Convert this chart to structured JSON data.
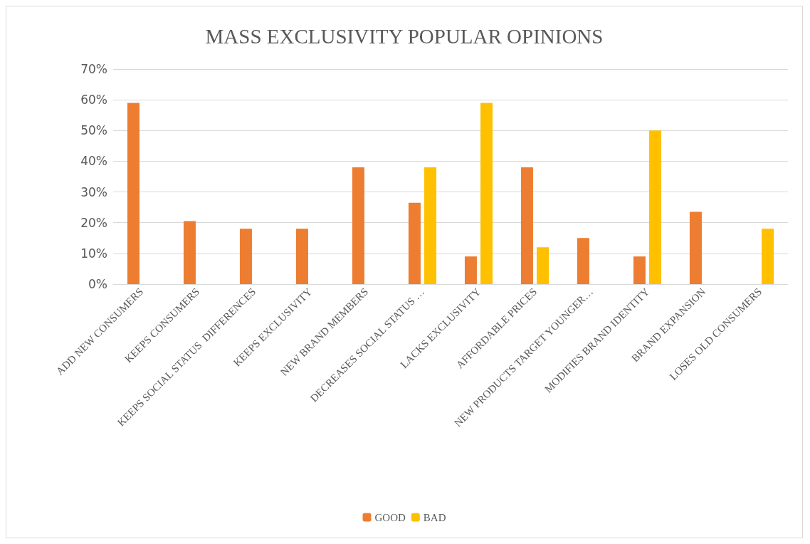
{
  "chart_data": {
    "type": "bar",
    "title": "MASS EXCLUSIVITY POPULAR OPINIONS",
    "categories": [
      "ADD NEW CONSUMERS",
      "KEEPS CONSUMERS",
      "KEEPS SOCIAL STATUS  DIFFERENCES",
      "KEEPS EXCLUSIVITY",
      "NEW BRAND MEMBERS",
      "DECREASES SOCIAL STATUS …",
      "LACKS EXCLUSIVITY",
      "AFFORDABLE PRICES",
      "NEW PRODUCTS TARGET YOUNGER…",
      "MODIFIES BRAND IDENTITY",
      "BRAND EXPANSION",
      "LOSES OLD CONSUMERS"
    ],
    "series": [
      {
        "name": "GOOD",
        "color": "#ed7d31",
        "values": [
          59,
          20.5,
          18,
          18,
          38,
          26.5,
          9,
          38,
          15,
          9,
          23.5,
          null
        ]
      },
      {
        "name": "BAD",
        "color": "#ffc000",
        "values": [
          null,
          null,
          null,
          null,
          null,
          38,
          59,
          12,
          null,
          50,
          null,
          18
        ]
      }
    ],
    "ylim": [
      0,
      70
    ],
    "yticks": [
      {
        "value": 0,
        "label": "0%"
      },
      {
        "value": 10,
        "label": "10%"
      },
      {
        "value": 20,
        "label": "20%"
      },
      {
        "value": 30,
        "label": "30%"
      },
      {
        "value": 40,
        "label": "40%"
      },
      {
        "value": 50,
        "label": "50%"
      },
      {
        "value": 60,
        "label": "60%"
      },
      {
        "value": 70,
        "label": "70%"
      }
    ],
    "grid": "y",
    "legend": "bottom"
  }
}
